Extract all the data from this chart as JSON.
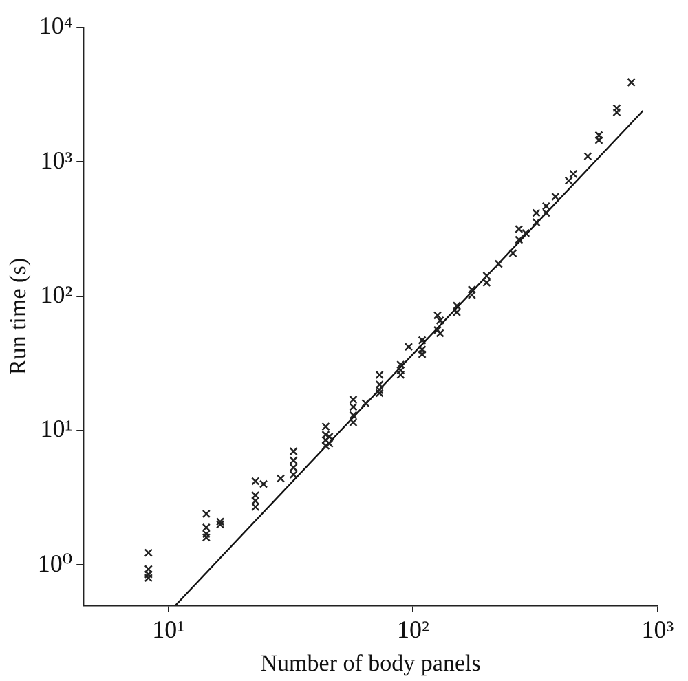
{
  "chart_data": {
    "type": "scatter",
    "xlabel": "Number of body panels",
    "ylabel": "Run time (s)",
    "log": "xy",
    "xlim": [
      4.5,
      1000
    ],
    "ylim": [
      0.5,
      10000
    ],
    "xticks": [
      {
        "value": 10,
        "label": "10¹"
      },
      {
        "value": 100,
        "label": "10²"
      },
      {
        "value": 1000,
        "label": "10³"
      }
    ],
    "yticks": [
      {
        "value": 1,
        "label": "10⁰"
      },
      {
        "value": 10,
        "label": "10¹"
      },
      {
        "value": 100,
        "label": "10²"
      },
      {
        "value": 1000,
        "label": "10³"
      },
      {
        "value": 10000,
        "label": "10⁴"
      }
    ],
    "grid": false,
    "legend": false,
    "marker": "cross",
    "series": [
      {
        "color": "#222222",
        "x": [
          8.3,
          8.3,
          8.3,
          8.3,
          14.3,
          14.3,
          14.3,
          14.3,
          16.3,
          16.3,
          22.7,
          22.7,
          22.7,
          22.7,
          24.5,
          28.8,
          32.5,
          32.5,
          32.5,
          32.5,
          44,
          44,
          44,
          44,
          45.5,
          45.5,
          57,
          57,
          57,
          57,
          64,
          73,
          73,
          73,
          73,
          89,
          89,
          89,
          96,
          109,
          109,
          109,
          129,
          129,
          126,
          126,
          151,
          151,
          174,
          174,
          200,
          200,
          224,
          256,
          271,
          271,
          289,
          319,
          319,
          350,
          350,
          382,
          433,
          452,
          518,
          575,
          575,
          680,
          680,
          780
        ],
        "values": [
          1.23,
          0.93,
          0.85,
          0.8,
          2.4,
          1.9,
          1.7,
          1.6,
          2.0,
          2.1,
          4.2,
          3.3,
          3.0,
          2.7,
          4.0,
          4.4,
          7.0,
          6.0,
          5.3,
          4.7,
          10.7,
          9.3,
          8.5,
          7.7,
          8.0,
          9.0,
          17,
          15,
          13,
          11.5,
          16,
          26,
          22,
          20,
          19,
          31,
          28,
          26,
          42,
          47,
          40,
          37,
          66,
          53,
          72,
          56,
          85,
          76,
          112,
          102,
          142,
          126,
          174,
          209,
          316,
          263,
          295,
          417,
          355,
          468,
          417,
          550,
          724,
          813,
          1100,
          1580,
          1450,
          2510,
          2340,
          3900
        ]
      },
      {
        "type": "line",
        "color": "#111111",
        "marker": "none",
        "x": [
          10.7,
          870
        ],
        "values": [
          0.5,
          2400
        ]
      }
    ]
  }
}
